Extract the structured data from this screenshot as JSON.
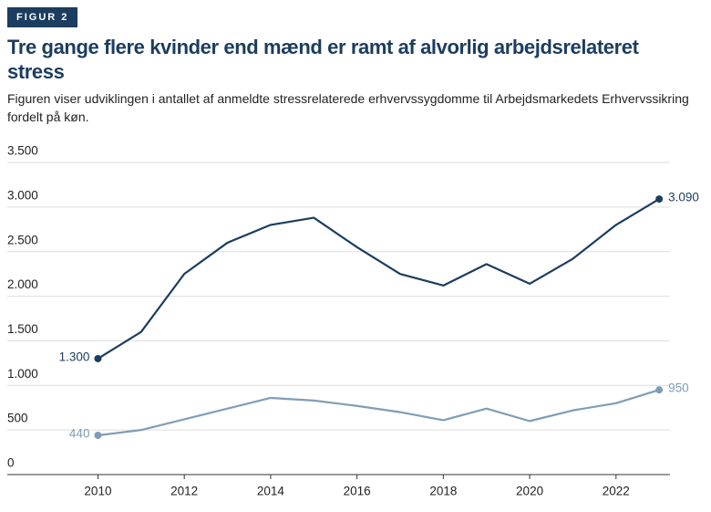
{
  "badge": "FIGUR 2",
  "chart_data": {
    "type": "line",
    "title": "Tre gange flere kvinder end mænd er ramt af alvorlig arbejdsrelateret stress",
    "subtitle": "Figuren viser udviklingen i antallet af anmeldte stressrelaterede erhvervssygdomme til Arbejdsmarkedets Erhvervssikring fordelt på køn.",
    "x": [
      2010,
      2011,
      2012,
      2013,
      2014,
      2015,
      2016,
      2017,
      2018,
      2019,
      2020,
      2021,
      2022,
      2023
    ],
    "series": [
      {
        "color": "#1b3d5f",
        "values": [
          1300,
          1600,
          2250,
          2600,
          2800,
          2880,
          2550,
          2250,
          2120,
          2360,
          2140,
          2420,
          2800,
          3090
        ],
        "value_labels": [
          "1.300",
          null,
          null,
          null,
          null,
          null,
          null,
          null,
          null,
          null,
          null,
          null,
          null,
          "3.090"
        ]
      },
      {
        "color": "#7f9db6",
        "values": [
          440,
          500,
          620,
          740,
          860,
          830,
          770,
          700,
          610,
          740,
          600,
          720,
          800,
          950
        ],
        "value_labels": [
          "440",
          null,
          null,
          null,
          null,
          null,
          null,
          null,
          null,
          null,
          null,
          null,
          null,
          "950"
        ]
      }
    ],
    "xlim": [
      2007.9,
      2023.25
    ],
    "xticks": [
      2010,
      2012,
      2014,
      2016,
      2018,
      2020,
      2022
    ],
    "ylim": [
      0,
      3500
    ],
    "yticks": [
      0,
      {
        "value": 500,
        "label": "500"
      },
      {
        "value": 1000,
        "label": "1.000"
      },
      {
        "value": 1500,
        "label": "1.500"
      },
      {
        "value": 2000,
        "label": "2.000"
      },
      {
        "value": 2500,
        "label": "2.500"
      },
      {
        "value": 3000,
        "label": "3.000"
      },
      {
        "value": 3500,
        "label": "3.500"
      }
    ],
    "grid": true
  }
}
